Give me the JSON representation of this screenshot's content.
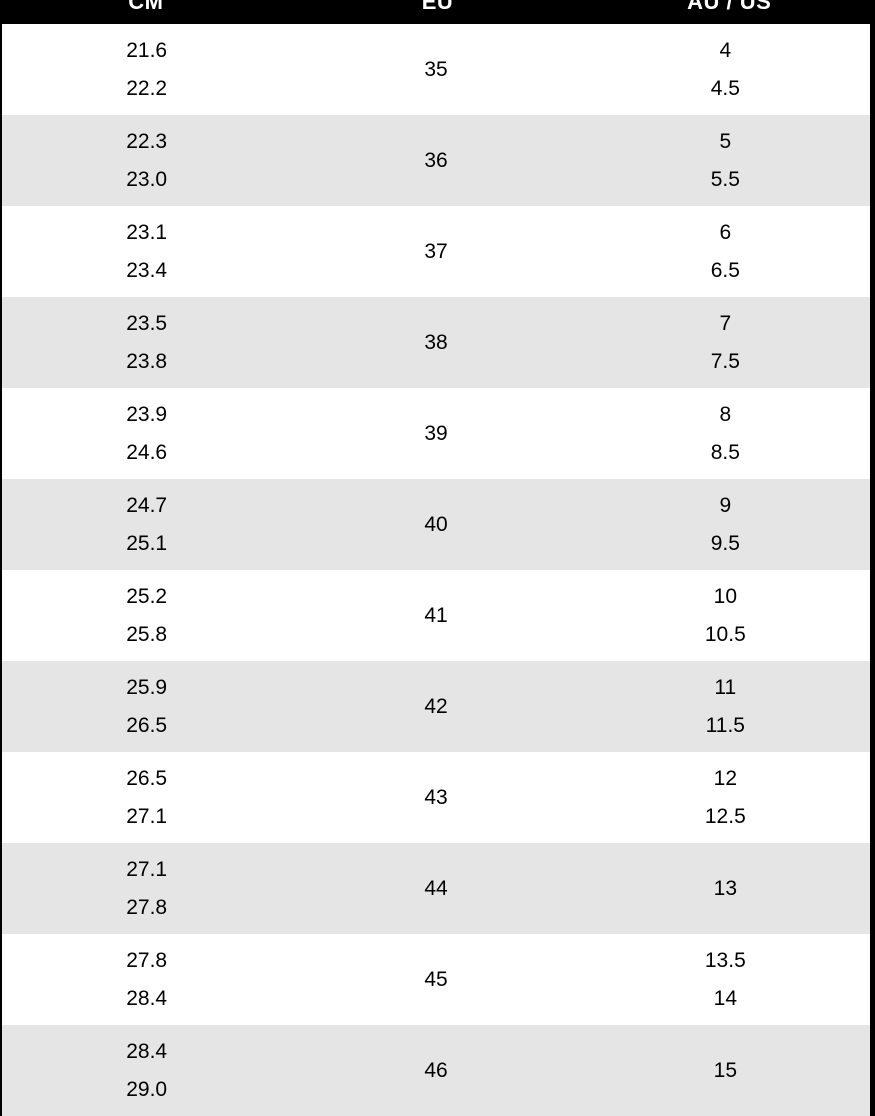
{
  "colors": {
    "header_bg": "#000000",
    "header_text": "#ffffff",
    "row_bg": "#ffffff",
    "stripe_bg": "#e5e5e5",
    "text": "#000000",
    "border": "#000000"
  },
  "chart_data": {
    "type": "table",
    "columns": [
      "CM",
      "EU",
      "AU / US"
    ],
    "rows": [
      {
        "cm": [
          "21.6",
          "22.2"
        ],
        "eu": "35",
        "au_us": [
          "4",
          "4.5"
        ]
      },
      {
        "cm": [
          "22.3",
          "23.0"
        ],
        "eu": "36",
        "au_us": [
          "5",
          "5.5"
        ]
      },
      {
        "cm": [
          "23.1",
          "23.4"
        ],
        "eu": "37",
        "au_us": [
          "6",
          "6.5"
        ]
      },
      {
        "cm": [
          "23.5",
          "23.8"
        ],
        "eu": "38",
        "au_us": [
          "7",
          "7.5"
        ]
      },
      {
        "cm": [
          "23.9",
          "24.6"
        ],
        "eu": "39",
        "au_us": [
          "8",
          "8.5"
        ]
      },
      {
        "cm": [
          "24.7",
          "25.1"
        ],
        "eu": "40",
        "au_us": [
          "9",
          "9.5"
        ]
      },
      {
        "cm": [
          "25.2",
          "25.8"
        ],
        "eu": "41",
        "au_us": [
          "10",
          "10.5"
        ]
      },
      {
        "cm": [
          "25.9",
          "26.5"
        ],
        "eu": "42",
        "au_us": [
          "11",
          "11.5"
        ]
      },
      {
        "cm": [
          "26.5",
          "27.1"
        ],
        "eu": "43",
        "au_us": [
          "12",
          "12.5"
        ]
      },
      {
        "cm": [
          "27.1",
          "27.8"
        ],
        "eu": "44",
        "au_us": [
          "13"
        ]
      },
      {
        "cm": [
          "27.8",
          "28.4"
        ],
        "eu": "45",
        "au_us": [
          "13.5",
          "14"
        ]
      },
      {
        "cm": [
          "28.4",
          "29.0"
        ],
        "eu": "46",
        "au_us": [
          "15"
        ]
      }
    ]
  }
}
